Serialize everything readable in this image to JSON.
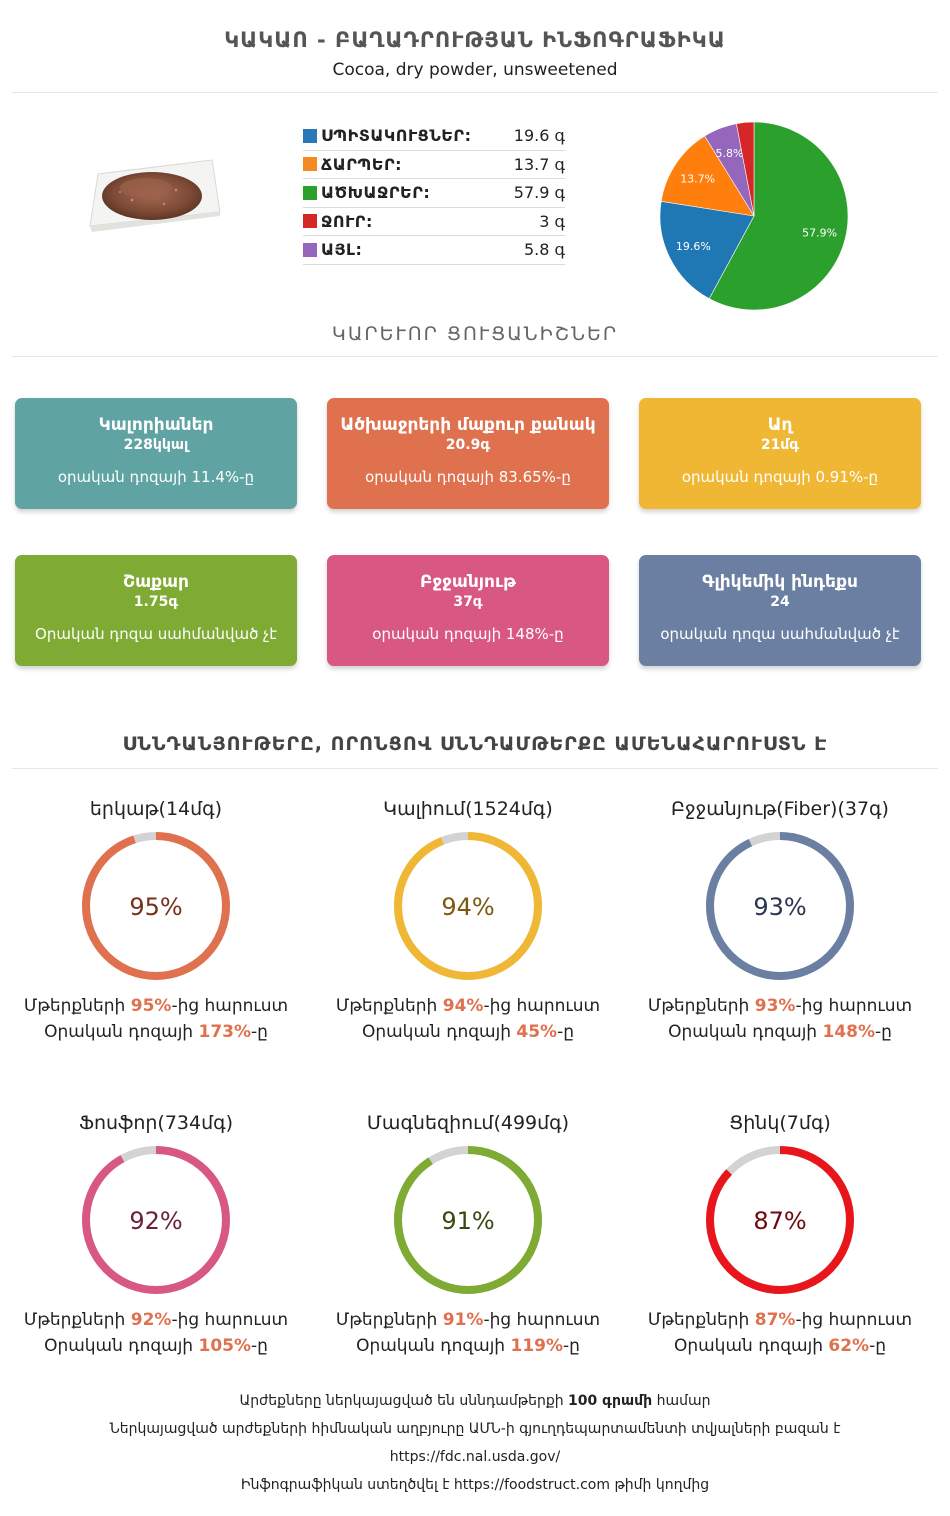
{
  "header": {
    "title": "ԿԱԿԱՈ - ԲԱՂԱԴՐՈՒԹՅԱՆ ԻՆՖՈԳՐԱՖԻԿԱ",
    "subtitle": "Cocoa, dry powder, unsweetened"
  },
  "macros": [
    {
      "name": "ՍՊԻՏԱԿՈՒՑՆԵՐ:",
      "value": "19.6 գ",
      "color": "#2a78b7"
    },
    {
      "name": "ՃԱՐՊԵՐ:",
      "value": "13.7 գ",
      "color": "#f58a22"
    },
    {
      "name": "ԱԾԽԱՋՐԵՐ:",
      "value": "57.9 գ",
      "color": "#2ca02c"
    },
    {
      "name": "ՋՈՒՐ:",
      "value": "3 գ",
      "color": "#d62728"
    },
    {
      "name": "ԱՅԼ:",
      "value": "5.8 գ",
      "color": "#9467bd"
    }
  ],
  "chart_data": {
    "type": "pie",
    "slices": [
      {
        "label": "57.9%",
        "value": 57.9,
        "color": "#2ca02c"
      },
      {
        "label": "19.6%",
        "value": 19.6,
        "color": "#1f77b4"
      },
      {
        "label": "13.7%",
        "value": 13.7,
        "color": "#ff7f0e"
      },
      {
        "label": "5.8%",
        "value": 5.8,
        "color": "#9467bd"
      },
      {
        "label": "",
        "value": 3,
        "color": "#d62728"
      }
    ]
  },
  "key_indicators_title": "ԿԱՐԵՒՈՐ ՑՈՒՑԱՆԻՇՆԵՐ",
  "indicators": [
    {
      "title": "Կալորիաներ",
      "value": "228կկալ",
      "note": "օրական դոզայի 11.4%-ը",
      "color": "#5fa3a3"
    },
    {
      "title": "Ածխաջրերի մաքուր քանակ",
      "value": "20.9գ",
      "note": "օրական դոզայի 83.65%-ը",
      "color": "#e0714f"
    },
    {
      "title": "Աղ",
      "value": "21մգ",
      "note": "օրական դոզայի 0.91%-ը",
      "color": "#f0b735"
    },
    {
      "title": "Շաքար",
      "value": "1.75գ",
      "note": "Օրական դոզա սահմանված չէ",
      "color": "#7faa34"
    },
    {
      "title": "Բջջանյութ",
      "value": "37գ",
      "note": "օրական դոզայի 148%-ը",
      "color": "#d95883"
    },
    {
      "title": "Գլիկեմիկ ինդեքս",
      "value": "24",
      "note": "օրական դոզա սահմանված չէ",
      "color": "#6a7fa1"
    }
  ],
  "rich_title": "ՍՆՆԴԱՆՅՈՒԹԵՐԸ, ՈՐՈՆՑՈՎ ՍՆՆԴԱՄԹԵՐՔԸ ԱՄԵՆԱՀԱՐՈՒՍՏՆ Է",
  "nutrients": [
    {
      "name": "երկաթ(14մգ)",
      "percent": 95,
      "pct_label": "95%",
      "richer_pre": "Մթերքների ",
      "richer_val": "95%",
      "richer_post": "-ից հարուստ",
      "daily_pre": "Օրական դոզայի ",
      "daily_val": "173%",
      "daily_post": "-ը",
      "color": "#e0714f",
      "text_color": "#7a2f1c"
    },
    {
      "name": "Կալիում(1524մգ)",
      "percent": 94,
      "pct_label": "94%",
      "richer_pre": "Մթերքների ",
      "richer_val": "94%",
      "richer_post": "-ից հարուստ",
      "daily_pre": "Օրական դոզայի ",
      "daily_val": "45%",
      "daily_post": "-ը",
      "color": "#f0b735",
      "text_color": "#7a5a10"
    },
    {
      "name": "Բջջանյութ(Fiber)(37գ)",
      "percent": 93,
      "pct_label": "93%",
      "richer_pre": "Մթերքների ",
      "richer_val": "93%",
      "richer_post": "-ից հարուստ",
      "daily_pre": "Օրական դոզայի ",
      "daily_val": "148%",
      "daily_post": "-ը",
      "color": "#6a7fa1",
      "text_color": "#2a3550"
    },
    {
      "name": "Ֆոսֆոր(734մգ)",
      "percent": 92,
      "pct_label": "92%",
      "richer_pre": "Մթերքների ",
      "richer_val": "92%",
      "richer_post": "-ից հարուստ",
      "daily_pre": "Օրական դոզայի ",
      "daily_val": "105%",
      "daily_post": "-ը",
      "color": "#d95883",
      "text_color": "#6b1f3a"
    },
    {
      "name": "Մագնեզիում(499մգ)",
      "percent": 91,
      "pct_label": "91%",
      "richer_pre": "Մթերքների ",
      "richer_val": "91%",
      "richer_post": "-ից հարուստ",
      "daily_pre": "Օրական դոզայի ",
      "daily_val": "119%",
      "daily_post": "-ը",
      "color": "#7faa34",
      "text_color": "#344a12"
    },
    {
      "name": "Ցինկ(7մգ)",
      "percent": 87,
      "pct_label": "87%",
      "richer_pre": "Մթերքների ",
      "richer_val": "87%",
      "richer_post": "-ից հարուստ",
      "daily_pre": "Օրական դոզայի ",
      "daily_val": "62%",
      "daily_post": "-ը",
      "color": "#e8161b",
      "text_color": "#6e0a0c"
    }
  ],
  "footer": {
    "line1_pre": "Արժեքները ներկայացված են սննդամթերքի ",
    "line1_bold": "100 գրամի",
    "line1_post": " համար",
    "line2": "Ներկայացված արժեքների հիմնական աղբյուրը ԱՄՆ-ի գյուղդեպարտամենտի տվյալների բազան է",
    "line3": "https://fdc.nal.usda.gov/",
    "line4_pre": "Ինֆոգրաֆիկան ստեղծվել է ",
    "line4_link": "https://foodstruct.com",
    "line4_post": " թիմի կողմից"
  }
}
